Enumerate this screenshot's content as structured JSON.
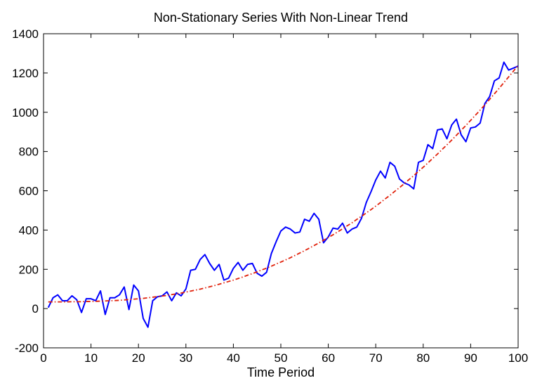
{
  "chart_data": {
    "type": "line",
    "title": "Non-Stationary Series With Non-Linear Trend",
    "xlabel": "Time Period",
    "ylabel": "",
    "xlim": [
      0,
      100
    ],
    "ylim": [
      -200,
      1400
    ],
    "x_ticks": [
      0,
      10,
      20,
      30,
      40,
      50,
      60,
      70,
      80,
      90,
      100
    ],
    "y_ticks": [
      -200,
      0,
      200,
      400,
      600,
      800,
      1000,
      1200,
      1400
    ],
    "grid": false,
    "legend": "none",
    "x": [
      1,
      2,
      3,
      4,
      5,
      6,
      7,
      8,
      9,
      10,
      11,
      12,
      13,
      14,
      15,
      16,
      17,
      18,
      19,
      20,
      21,
      22,
      23,
      24,
      25,
      26,
      27,
      28,
      29,
      30,
      31,
      32,
      33,
      34,
      35,
      36,
      37,
      38,
      39,
      40,
      41,
      42,
      43,
      44,
      45,
      46,
      47,
      48,
      49,
      50,
      51,
      52,
      53,
      54,
      55,
      56,
      57,
      58,
      59,
      60,
      61,
      62,
      63,
      64,
      65,
      66,
      67,
      68,
      69,
      70,
      71,
      72,
      73,
      74,
      75,
      76,
      77,
      78,
      79,
      80,
      81,
      82,
      83,
      84,
      85,
      86,
      87,
      88,
      89,
      90,
      91,
      92,
      93,
      94,
      95,
      96,
      97,
      98,
      99,
      100
    ],
    "series": [
      {
        "color": "#0000ff",
        "style": "solid",
        "values": [
          5,
          55,
          70,
          40,
          40,
          65,
          45,
          -20,
          50,
          50,
          40,
          90,
          -30,
          55,
          55,
          70,
          110,
          -5,
          120,
          90,
          -50,
          -95,
          40,
          60,
          65,
          85,
          40,
          80,
          65,
          100,
          195,
          200,
          250,
          275,
          230,
          195,
          225,
          145,
          155,
          205,
          235,
          195,
          225,
          230,
          180,
          165,
          185,
          280,
          340,
          395,
          415,
          405,
          385,
          390,
          455,
          445,
          485,
          455,
          335,
          365,
          410,
          405,
          435,
          385,
          405,
          415,
          460,
          540,
          595,
          655,
          700,
          665,
          745,
          725,
          660,
          640,
          630,
          610,
          745,
          755,
          835,
          815,
          910,
          915,
          865,
          935,
          965,
          885,
          850,
          920,
          925,
          945,
          1045,
          1080,
          1160,
          1175,
          1255,
          1215,
          1225,
          1235
        ]
      },
      {
        "color": "#e0200a",
        "style": "dashdot",
        "values": [
          34,
          34,
          34,
          34,
          34,
          35,
          35,
          35,
          36,
          36,
          37,
          38,
          39,
          40,
          41,
          42,
          44,
          46,
          48,
          50,
          52,
          55,
          58,
          61,
          64,
          67,
          71,
          75,
          79,
          84,
          89,
          94,
          99,
          105,
          111,
          117,
          124,
          131,
          138,
          145,
          153,
          161,
          170,
          178,
          187,
          197,
          206,
          216,
          227,
          237,
          248,
          259,
          271,
          283,
          295,
          308,
          321,
          334,
          348,
          362,
          376,
          391,
          406,
          422,
          437,
          454,
          470,
          487,
          504,
          522,
          540,
          559,
          577,
          597,
          616,
          636,
          657,
          677,
          699,
          720,
          742,
          765,
          787,
          811,
          834,
          858,
          883,
          908,
          933,
          959,
          985,
          1011,
          1038,
          1066,
          1094,
          1122,
          1151,
          1180,
          1209,
          1239
        ]
      }
    ]
  }
}
